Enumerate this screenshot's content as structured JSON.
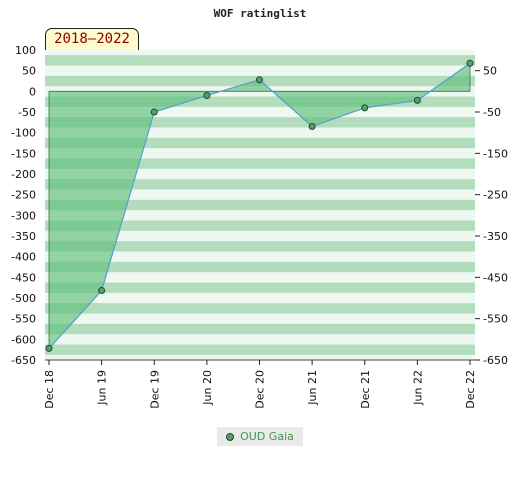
{
  "chart_data": {
    "type": "area",
    "title": "WOF ratinglist",
    "period_label": "2018–2022",
    "categories": [
      "Dec 18",
      "Jun 19",
      "Dec 19",
      "Jun 20",
      "Dec 20",
      "Jun 21",
      "Dec 21",
      "Jun 22",
      "Dec 22"
    ],
    "series": [
      {
        "name": "OUD Gaia",
        "values": [
          -622,
          -482,
          -50,
          -10,
          28,
          -85,
          -40,
          -22,
          68
        ]
      }
    ],
    "left_yticks": [
      100,
      50,
      0,
      -50,
      -100,
      -150,
      -200,
      -250,
      -300,
      -350,
      -400,
      -450,
      -500,
      -550,
      -600,
      -650
    ],
    "right_yticks": [
      50,
      -50,
      -150,
      -250,
      -350,
      -450,
      -550,
      -650
    ],
    "ylim": [
      -650,
      100
    ],
    "legend_position": "bottom",
    "colors": {
      "line": "#5aa0d0",
      "fill": "#5fbf79",
      "marker": "#5a9e6a",
      "band_dark": "#b2dcbc",
      "band_light": "#eef8f0"
    }
  }
}
